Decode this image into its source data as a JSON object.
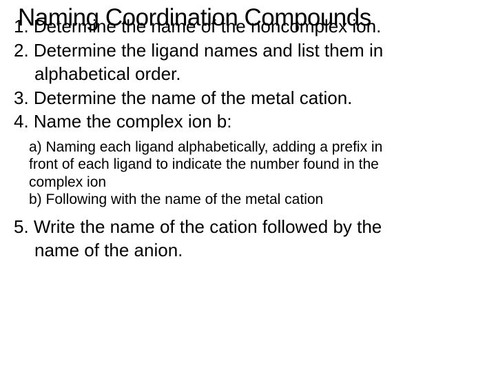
{
  "title": "Naming Coordination Compounds",
  "steps": {
    "s1": "1. Determine the name of the noncomplex ion.",
    "s2_line1": "2. Determine the ligand names and list them in",
    "s2_line2": "alphabetical order.",
    "s3": "3. Determine the name of the metal cation.",
    "s4": "4. Name the complex ion b:",
    "s5_line1": "5. Write the name of the cation followed by the",
    "s5_line2": "name of the anion."
  },
  "substeps": {
    "a_line1": "a) Naming each ligand alphabetically, adding a prefix in",
    "a_line2": "front of each ligand to indicate the number found in the",
    "a_line3": "complex ion",
    "b": "b) Following with the name of the metal cation"
  },
  "style": {
    "background_color": "#ffffff",
    "text_color": "#000000",
    "title_fontsize": 35,
    "body_fontsize": 26,
    "sub_fontsize": 21,
    "font_family": "Arial"
  }
}
